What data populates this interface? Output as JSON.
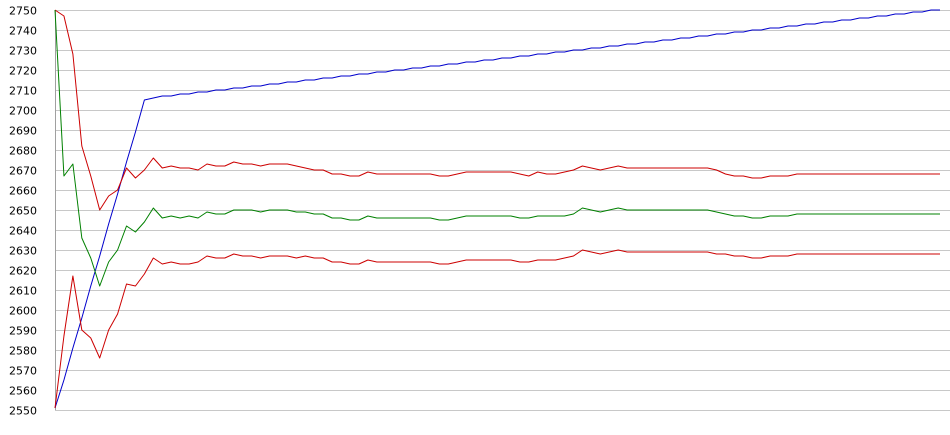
{
  "chart_data": {
    "type": "line",
    "title": "",
    "xlabel": "",
    "ylabel": "",
    "ylim": [
      2550,
      2750
    ],
    "y_ticks": [
      "2550",
      "2560",
      "2570",
      "2580",
      "2590",
      "2600",
      "2610",
      "2620",
      "2630",
      "2640",
      "2650",
      "2660",
      "2670",
      "2680",
      "2690",
      "2700",
      "2710",
      "2720",
      "2730",
      "2740",
      "2750"
    ],
    "grid": true,
    "legend": "none",
    "x": [
      0,
      1,
      2,
      3,
      4,
      5,
      6,
      7,
      8,
      9,
      10,
      11,
      12,
      13,
      14,
      15,
      16,
      17,
      18,
      19,
      20,
      21,
      22,
      23,
      24,
      25,
      26,
      27,
      28,
      29,
      30,
      31,
      32,
      33,
      34,
      35,
      36,
      37,
      38,
      39,
      40,
      41,
      42,
      43,
      44,
      45,
      46,
      47,
      48,
      49,
      50,
      51,
      52,
      53,
      54,
      55,
      56,
      57,
      58,
      59,
      60,
      61,
      62,
      63,
      64,
      65,
      66,
      67,
      68,
      69,
      70,
      71,
      72,
      73,
      74,
      75,
      76,
      77,
      78,
      79,
      80,
      81,
      82,
      83,
      84,
      85,
      86,
      87,
      88,
      89,
      90,
      91,
      92,
      93,
      94,
      95,
      96,
      97,
      98,
      99
    ],
    "series": [
      {
        "color": "#0000cc",
        "values": [
          2551,
          2565,
          2581,
          2596,
          2612,
          2627,
          2643,
          2658,
          2674,
          2689,
          2705,
          2706,
          2707,
          2707,
          2708,
          2708,
          2709,
          2709,
          2710,
          2710,
          2711,
          2711,
          2712,
          2712,
          2713,
          2713,
          2714,
          2714,
          2715,
          2715,
          2716,
          2716,
          2717,
          2717,
          2718,
          2718,
          2719,
          2719,
          2720,
          2720,
          2721,
          2721,
          2722,
          2722,
          2723,
          2723,
          2724,
          2724,
          2725,
          2725,
          2726,
          2726,
          2727,
          2727,
          2728,
          2728,
          2729,
          2729,
          2730,
          2730,
          2731,
          2731,
          2732,
          2732,
          2733,
          2733,
          2734,
          2734,
          2735,
          2735,
          2736,
          2736,
          2737,
          2737,
          2738,
          2738,
          2739,
          2739,
          2740,
          2740,
          2741,
          2741,
          2742,
          2742,
          2743,
          2743,
          2744,
          2744,
          2745,
          2745,
          2746,
          2746,
          2747,
          2747,
          2748,
          2748,
          2749,
          2749,
          2750,
          2750
        ]
      },
      {
        "color": "#cc0000",
        "values": [
          2750,
          2747,
          2728,
          2682,
          2667,
          2650,
          2657,
          2660,
          2671,
          2666,
          2670,
          2676,
          2671,
          2672,
          2671,
          2671,
          2670,
          2673,
          2672,
          2672,
          2674,
          2673,
          2673,
          2672,
          2673,
          2673,
          2673,
          2672,
          2671,
          2670,
          2670,
          2668,
          2668,
          2667,
          2667,
          2669,
          2668,
          2668,
          2668,
          2668,
          2668,
          2668,
          2668,
          2667,
          2667,
          2668,
          2669,
          2669,
          2669,
          2669,
          2669,
          2669,
          2668,
          2667,
          2669,
          2668,
          2668,
          2669,
          2670,
          2672,
          2671,
          2670,
          2671,
          2672,
          2671,
          2671,
          2671,
          2671,
          2671,
          2671,
          2671,
          2671,
          2671,
          2671,
          2670,
          2668,
          2667,
          2667,
          2666,
          2666,
          2667,
          2667,
          2667,
          2668,
          2668,
          2668,
          2668,
          2668,
          2668,
          2668,
          2668,
          2668,
          2668,
          2668,
          2668,
          2668,
          2668,
          2668,
          2668,
          2668
        ]
      },
      {
        "color": "#008000",
        "values": [
          2750,
          2667,
          2673,
          2636,
          2626,
          2612,
          2624,
          2630,
          2642,
          2639,
          2644,
          2651,
          2646,
          2647,
          2646,
          2647,
          2646,
          2649,
          2648,
          2648,
          2650,
          2650,
          2650,
          2649,
          2650,
          2650,
          2650,
          2649,
          2649,
          2648,
          2648,
          2646,
          2646,
          2645,
          2645,
          2647,
          2646,
          2646,
          2646,
          2646,
          2646,
          2646,
          2646,
          2645,
          2645,
          2646,
          2647,
          2647,
          2647,
          2647,
          2647,
          2647,
          2646,
          2646,
          2647,
          2647,
          2647,
          2647,
          2648,
          2651,
          2650,
          2649,
          2650,
          2651,
          2650,
          2650,
          2650,
          2650,
          2650,
          2650,
          2650,
          2650,
          2650,
          2650,
          2649,
          2648,
          2647,
          2647,
          2646,
          2646,
          2647,
          2647,
          2647,
          2648,
          2648,
          2648,
          2648,
          2648,
          2648,
          2648,
          2648,
          2648,
          2648,
          2648,
          2648,
          2648,
          2648,
          2648,
          2648,
          2648
        ]
      },
      {
        "color": "#cc0000",
        "values": [
          2551,
          2587,
          2617,
          2590,
          2586,
          2576,
          2590,
          2598,
          2613,
          2612,
          2618,
          2626,
          2623,
          2624,
          2623,
          2623,
          2624,
          2627,
          2626,
          2626,
          2628,
          2627,
          2627,
          2626,
          2627,
          2627,
          2627,
          2626,
          2627,
          2626,
          2626,
          2624,
          2624,
          2623,
          2623,
          2625,
          2624,
          2624,
          2624,
          2624,
          2624,
          2624,
          2624,
          2623,
          2623,
          2624,
          2625,
          2625,
          2625,
          2625,
          2625,
          2625,
          2624,
          2624,
          2625,
          2625,
          2625,
          2626,
          2627,
          2630,
          2629,
          2628,
          2629,
          2630,
          2629,
          2629,
          2629,
          2629,
          2629,
          2629,
          2629,
          2629,
          2629,
          2629,
          2628,
          2628,
          2627,
          2627,
          2626,
          2626,
          2627,
          2627,
          2627,
          2628,
          2628,
          2628,
          2628,
          2628,
          2628,
          2628,
          2628,
          2628,
          2628,
          2628,
          2628,
          2628,
          2628,
          2628,
          2628,
          2628
        ]
      }
    ]
  }
}
